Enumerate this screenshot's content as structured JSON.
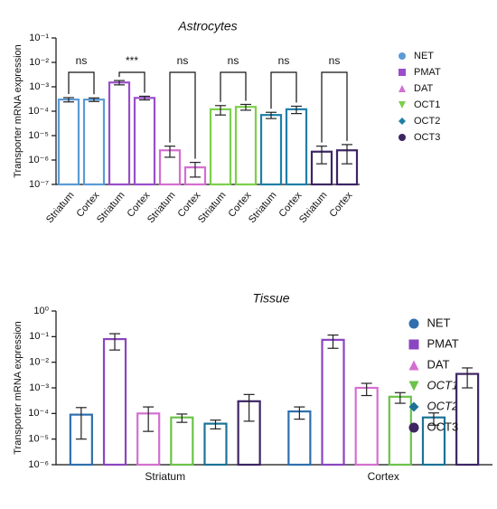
{
  "chart_data": [
    {
      "type": "bar",
      "title": "Astrocytes",
      "y_label": "Transporter mRNA expression",
      "yscale": "log",
      "categories": [
        "Striatum",
        "Cortex",
        "Striatum",
        "Cortex",
        "Striatum",
        "Cortex",
        "Striatum",
        "Cortex",
        "Striatum",
        "Cortex",
        "Striatum",
        "Cortex"
      ],
      "ylim": [
        1e-07,
        0.1
      ],
      "yticks": [
        {
          "value": 1e-07,
          "label": "10⁻⁷"
        },
        {
          "value": 1e-06,
          "label": "10⁻⁶"
        },
        {
          "value": 1e-05,
          "label": "10⁻⁵"
        },
        {
          "value": 0.0001,
          "label": "10⁻⁴"
        },
        {
          "value": 0.001,
          "label": "10⁻³"
        },
        {
          "value": 0.01,
          "label": "10⁻²"
        },
        {
          "value": 0.1,
          "label": "10⁻¹"
        }
      ],
      "annotations": [
        "ns",
        "***",
        "ns",
        "ns",
        "ns",
        "ns"
      ],
      "series": [
        {
          "name": "NET",
          "color": "#5b9bd5",
          "marker": "circle",
          "values": [
            0.0003,
            0.0003,
            null,
            null,
            null,
            null,
            null,
            null,
            null,
            null,
            null,
            null
          ],
          "errors": [
            6e-05,
            5e-05,
            null,
            null,
            null,
            null,
            null,
            null,
            null,
            null,
            null,
            null
          ]
        },
        {
          "name": "PMAT",
          "color": "#9b4dca",
          "marker": "square",
          "values": [
            null,
            null,
            0.0015,
            0.00035,
            null,
            null,
            null,
            null,
            null,
            null,
            null,
            null
          ],
          "errors": [
            null,
            null,
            0.0003,
            6e-05,
            null,
            null,
            null,
            null,
            null,
            null,
            null,
            null
          ]
        },
        {
          "name": "DAT",
          "color": "#d46fd0",
          "marker": "triangle-up",
          "values": [
            null,
            null,
            null,
            null,
            2.5e-06,
            5e-07,
            null,
            null,
            null,
            null,
            null,
            null
          ],
          "errors": [
            null,
            null,
            null,
            null,
            1.2e-06,
            3e-07,
            null,
            null,
            null,
            null,
            null,
            null
          ]
        },
        {
          "name": "OCT1",
          "color": "#7ccf4a",
          "marker": "triangle-down",
          "values": [
            null,
            null,
            null,
            null,
            null,
            null,
            0.00012,
            0.00015,
            null,
            null,
            null,
            null
          ],
          "errors": [
            null,
            null,
            null,
            null,
            null,
            null,
            5e-05,
            4e-05,
            null,
            null,
            null,
            null
          ]
        },
        {
          "name": "OCT2",
          "color": "#1f7fa8",
          "marker": "diamond",
          "values": [
            null,
            null,
            null,
            null,
            null,
            null,
            null,
            null,
            7e-05,
            0.00012,
            null,
            null
          ],
          "errors": [
            null,
            null,
            null,
            null,
            null,
            null,
            null,
            null,
            2e-05,
            4e-05,
            null,
            null
          ]
        },
        {
          "name": "OCT3",
          "color": "#3d2563",
          "marker": "circle",
          "values": [
            null,
            null,
            null,
            null,
            null,
            null,
            null,
            null,
            null,
            null,
            2.2e-06,
            2.5e-06
          ],
          "errors": [
            null,
            null,
            null,
            null,
            null,
            null,
            null,
            null,
            null,
            null,
            1.5e-06,
            1.8e-06
          ]
        }
      ]
    },
    {
      "type": "bar",
      "title": "Tissue",
      "y_label": "Transporter mRNA expression",
      "yscale": "log",
      "categories": [
        "Striatum",
        "Cortex"
      ],
      "ylim": [
        1e-06,
        1
      ],
      "yticks": [
        {
          "value": 1e-06,
          "label": "10⁻⁶"
        },
        {
          "value": 1e-05,
          "label": "10⁻⁵"
        },
        {
          "value": 0.0001,
          "label": "10⁻⁴"
        },
        {
          "value": 0.001,
          "label": "10⁻³"
        },
        {
          "value": 0.01,
          "label": "10⁻²"
        },
        {
          "value": 0.1,
          "label": "10⁻¹"
        },
        {
          "value": 1,
          "label": "10⁰"
        }
      ],
      "series": [
        {
          "name": "NET",
          "color": "#2f6fad",
          "marker": "circle",
          "values": [
            9e-05,
            0.00012
          ],
          "errors": [
            8e-05,
            6e-05
          ]
        },
        {
          "name": "PMAT",
          "color": "#8a45c0",
          "marker": "square",
          "values": [
            0.08,
            0.075
          ],
          "errors": [
            0.05,
            0.04
          ]
        },
        {
          "name": "DAT",
          "color": "#d46fd0",
          "marker": "triangle-up",
          "values": [
            0.0001,
            0.001
          ],
          "errors": [
            8e-05,
            0.0005
          ]
        },
        {
          "name": "OCT1",
          "color": "#6cc24a",
          "marker": "triangle-down",
          "font_style": "italic",
          "values": [
            7e-05,
            0.00045
          ],
          "errors": [
            2.5e-05,
            0.0002
          ]
        },
        {
          "name": "OCT2",
          "color": "#1b7396",
          "marker": "diamond",
          "font_style": "italic",
          "values": [
            4e-05,
            7e-05
          ],
          "errors": [
            1.5e-05,
            3.5e-05
          ]
        },
        {
          "name": "OCT3",
          "color": "#3d2563",
          "marker": "circle",
          "values": [
            0.0003,
            0.0035
          ],
          "errors": [
            0.00025,
            0.0025
          ]
        }
      ]
    }
  ]
}
